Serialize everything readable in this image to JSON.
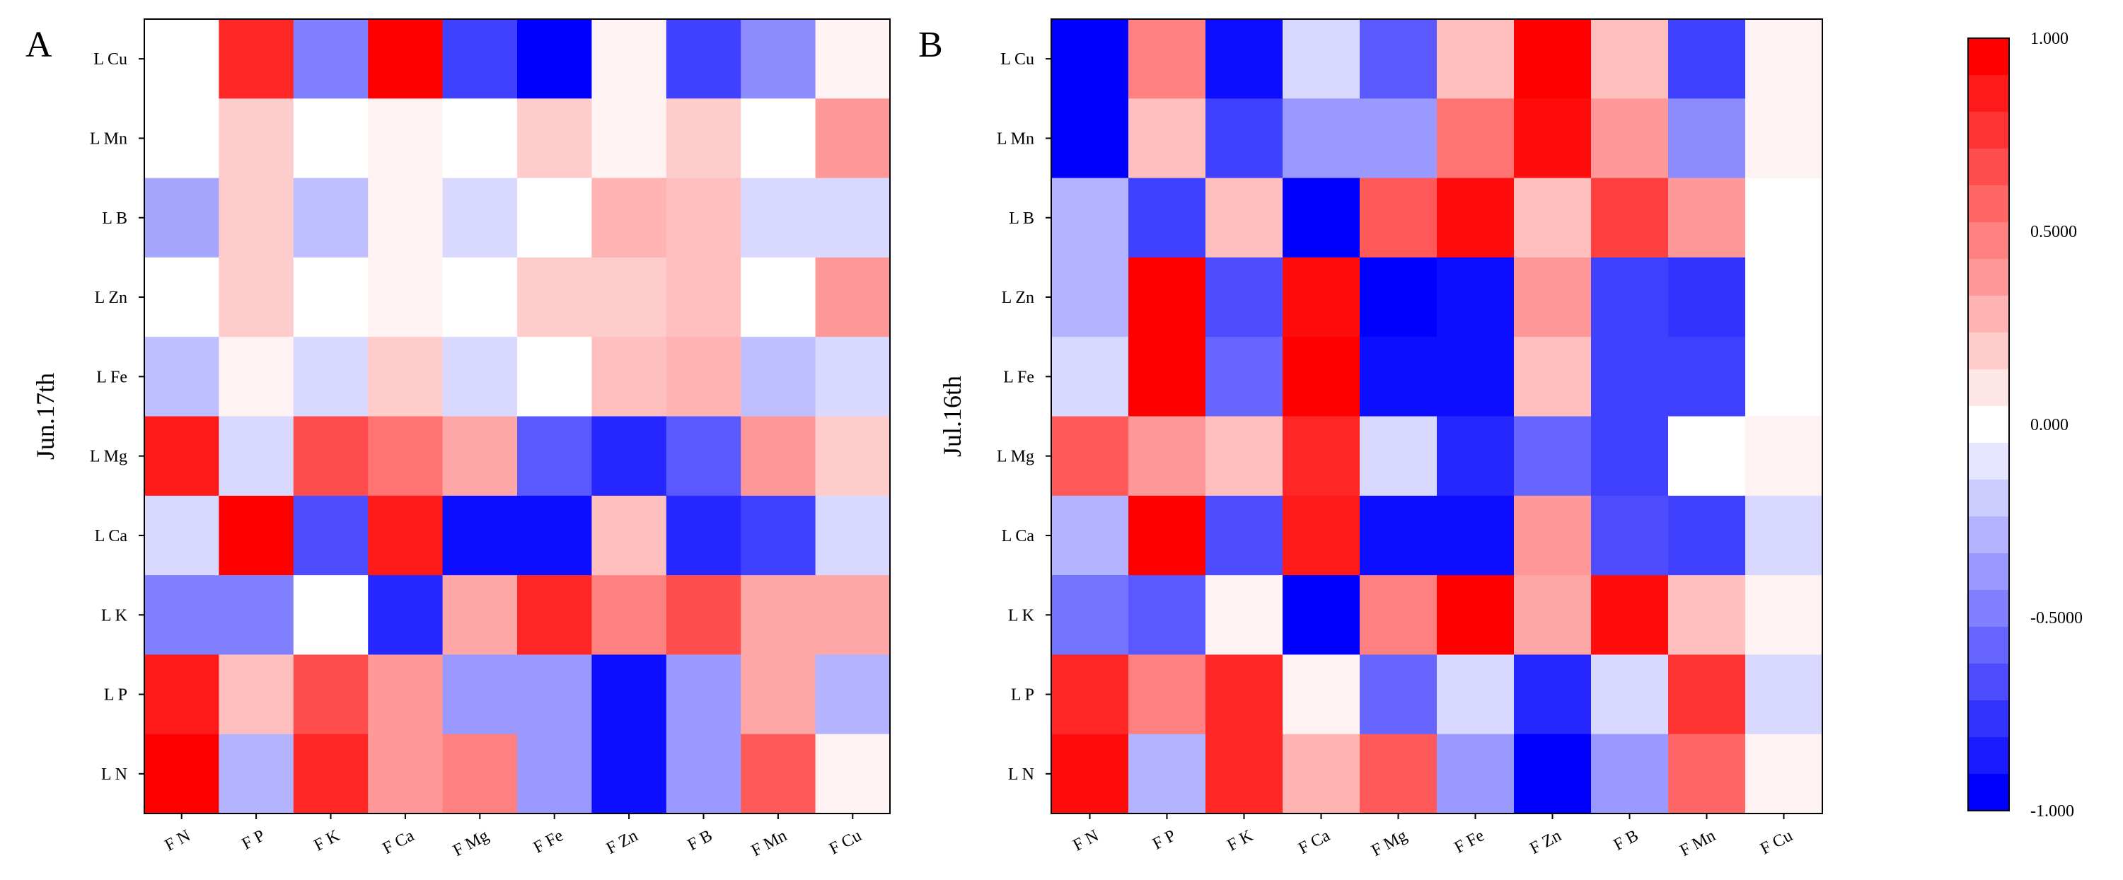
{
  "colorbar": {
    "labels": [
      "1.000",
      "0.5000",
      "0.000",
      "-0.5000",
      "-1.000"
    ],
    "ticks": [
      1.0,
      0.5,
      0.0,
      -0.5,
      -1.0
    ],
    "levels": 21,
    "min": -1.0,
    "max": 1.0,
    "neg_color": "#0000ff",
    "mid_color": "#ffffff",
    "pos_color": "#ff0000"
  },
  "chart_data": [
    {
      "type": "heatmap",
      "panel": "A",
      "ylabel": "Jun.17th",
      "x_categories": [
        "F N",
        "F P",
        "F K",
        "F Ca",
        "F Mg",
        "F Fe",
        "F Zn",
        "F B",
        "F Mn",
        "F Cu"
      ],
      "y_categories": [
        "L Cu",
        "L Mn",
        "L B",
        "L Zn",
        "L Fe",
        "L Mg",
        "L Ca",
        "L K",
        "L P",
        "L N"
      ],
      "values": [
        [
          0.0,
          0.85,
          -0.5,
          1.0,
          -0.75,
          -1.0,
          0.05,
          -0.75,
          -0.45,
          0.05
        ],
        [
          0.0,
          0.2,
          0.0,
          0.05,
          0.0,
          0.2,
          0.05,
          0.2,
          0.0,
          0.4
        ],
        [
          -0.35,
          0.2,
          -0.25,
          0.05,
          -0.15,
          0.0,
          0.3,
          0.25,
          -0.15,
          -0.15
        ],
        [
          0.0,
          0.2,
          0.0,
          0.05,
          0.0,
          0.2,
          0.2,
          0.25,
          0.0,
          0.4
        ],
        [
          -0.25,
          0.05,
          -0.15,
          0.2,
          -0.15,
          0.0,
          0.25,
          0.3,
          -0.25,
          -0.15
        ],
        [
          0.9,
          -0.15,
          0.7,
          0.55,
          0.35,
          -0.65,
          -0.85,
          -0.65,
          0.4,
          0.2
        ],
        [
          -0.15,
          1.0,
          -0.7,
          0.9,
          -0.95,
          -0.95,
          0.25,
          -0.85,
          -0.75,
          -0.15
        ],
        [
          -0.5,
          -0.5,
          0.0,
          -0.85,
          0.35,
          0.85,
          0.5,
          0.7,
          0.35,
          0.35
        ],
        [
          0.9,
          0.25,
          0.7,
          0.4,
          -0.4,
          -0.4,
          -0.95,
          -0.4,
          0.35,
          -0.3
        ],
        [
          1.0,
          -0.3,
          0.85,
          0.4,
          0.5,
          -0.4,
          -0.95,
          -0.4,
          0.65,
          0.05
        ]
      ]
    },
    {
      "type": "heatmap",
      "panel": "B",
      "ylabel": "Jul.16th",
      "x_categories": [
        "F N",
        "F P",
        "F K",
        "F Ca",
        "F Mg",
        "F Fe",
        "F Zn",
        "F B",
        "F Mn",
        "F Cu"
      ],
      "y_categories": [
        "L Cu",
        "L Mn",
        "L B",
        "L Zn",
        "L Fe",
        "L Mg",
        "L Ca",
        "L K",
        "L P",
        "L N"
      ],
      "values": [
        [
          -1.0,
          0.5,
          -0.95,
          -0.15,
          -0.65,
          0.25,
          1.0,
          0.25,
          -0.75,
          0.05
        ],
        [
          -1.0,
          0.25,
          -0.75,
          -0.4,
          -0.4,
          0.55,
          0.95,
          0.4,
          -0.45,
          0.05
        ],
        [
          -0.3,
          -0.75,
          0.25,
          -1.0,
          0.65,
          0.95,
          0.25,
          0.75,
          0.4,
          0.0
        ],
        [
          -0.3,
          1.0,
          -0.7,
          0.95,
          -1.0,
          -0.95,
          0.4,
          -0.75,
          -0.8,
          0.0
        ],
        [
          -0.15,
          1.0,
          -0.6,
          1.0,
          -0.95,
          -0.95,
          0.25,
          -0.75,
          -0.75,
          0.0
        ],
        [
          0.65,
          0.4,
          0.25,
          0.85,
          -0.15,
          -0.85,
          -0.6,
          -0.75,
          0.0,
          0.05
        ],
        [
          -0.3,
          1.0,
          -0.7,
          0.9,
          -0.95,
          -0.95,
          0.4,
          -0.7,
          -0.75,
          -0.15
        ],
        [
          -0.55,
          -0.65,
          0.05,
          -1.0,
          0.5,
          1.0,
          0.35,
          0.95,
          0.25,
          0.05
        ],
        [
          0.85,
          0.5,
          0.85,
          0.05,
          -0.6,
          -0.15,
          -0.85,
          -0.15,
          0.8,
          -0.15
        ],
        [
          0.95,
          -0.3,
          0.85,
          0.3,
          0.65,
          -0.4,
          -1.0,
          -0.4,
          0.6,
          0.05
        ]
      ]
    }
  ]
}
